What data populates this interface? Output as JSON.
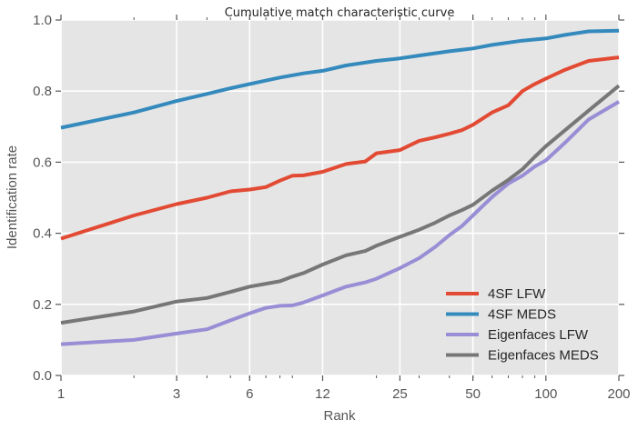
{
  "chart_data": {
    "type": "line",
    "title": "Cumulative match characteristic curve",
    "xlabel": "Rank",
    "ylabel": "Identification rate",
    "xscale": "log",
    "xlim": [
      1,
      200
    ],
    "ylim": [
      0.0,
      1.0
    ],
    "xticks": [
      1,
      3,
      6,
      12,
      25,
      50,
      100,
      200
    ],
    "xtick_labels": [
      "1",
      "3",
      "6",
      "12",
      "25",
      "50",
      "100",
      "200"
    ],
    "yticks": [
      0.0,
      0.2,
      0.4,
      0.6,
      0.8,
      1.0
    ],
    "ytick_labels": [
      "0.0",
      "0.2",
      "0.4",
      "0.6",
      "0.8",
      "1.0"
    ],
    "grid": true,
    "legend_position": "lower-right",
    "series": [
      {
        "name": "4SF LFW",
        "color": "#e24a33",
        "x": [
          1,
          2,
          3,
          4,
          5,
          6,
          7,
          8,
          9,
          10,
          12,
          15,
          18,
          20,
          25,
          30,
          35,
          40,
          45,
          50,
          60,
          70,
          80,
          90,
          100,
          120,
          150,
          200
        ],
        "y": [
          0.385,
          0.45,
          0.482,
          0.5,
          0.518,
          0.523,
          0.53,
          0.548,
          0.562,
          0.563,
          0.573,
          0.595,
          0.602,
          0.625,
          0.634,
          0.66,
          0.67,
          0.68,
          0.69,
          0.705,
          0.74,
          0.76,
          0.8,
          0.82,
          0.835,
          0.86,
          0.885,
          0.895
        ]
      },
      {
        "name": "4SF MEDS",
        "color": "#348abd",
        "x": [
          1,
          2,
          3,
          4,
          5,
          6,
          8,
          10,
          12,
          15,
          20,
          25,
          30,
          40,
          50,
          60,
          80,
          100,
          120,
          150,
          200
        ],
        "y": [
          0.697,
          0.74,
          0.772,
          0.792,
          0.808,
          0.82,
          0.838,
          0.85,
          0.857,
          0.872,
          0.885,
          0.892,
          0.9,
          0.912,
          0.92,
          0.93,
          0.942,
          0.948,
          0.958,
          0.968,
          0.97
        ]
      },
      {
        "name": "Eigenfaces LFW",
        "color": "#988ed5",
        "x": [
          1,
          2,
          3,
          4,
          5,
          6,
          7,
          8,
          9,
          10,
          12,
          15,
          18,
          20,
          25,
          30,
          35,
          40,
          45,
          50,
          60,
          70,
          80,
          90,
          100,
          120,
          150,
          200
        ],
        "y": [
          0.088,
          0.1,
          0.118,
          0.13,
          0.155,
          0.175,
          0.19,
          0.196,
          0.197,
          0.205,
          0.225,
          0.25,
          0.262,
          0.272,
          0.302,
          0.33,
          0.362,
          0.395,
          0.42,
          0.45,
          0.502,
          0.54,
          0.562,
          0.588,
          0.605,
          0.655,
          0.72,
          0.77
        ]
      },
      {
        "name": "Eigenfaces MEDS",
        "color": "#777777",
        "x": [
          1,
          2,
          3,
          4,
          5,
          6,
          7,
          8,
          9,
          10,
          12,
          15,
          18,
          20,
          25,
          30,
          35,
          40,
          45,
          50,
          60,
          70,
          80,
          90,
          100,
          120,
          150,
          200
        ],
        "y": [
          0.148,
          0.18,
          0.208,
          0.218,
          0.235,
          0.25,
          0.258,
          0.265,
          0.278,
          0.288,
          0.312,
          0.338,
          0.35,
          0.365,
          0.39,
          0.41,
          0.43,
          0.45,
          0.465,
          0.48,
          0.52,
          0.55,
          0.58,
          0.615,
          0.645,
          0.69,
          0.745,
          0.815
        ]
      }
    ]
  }
}
